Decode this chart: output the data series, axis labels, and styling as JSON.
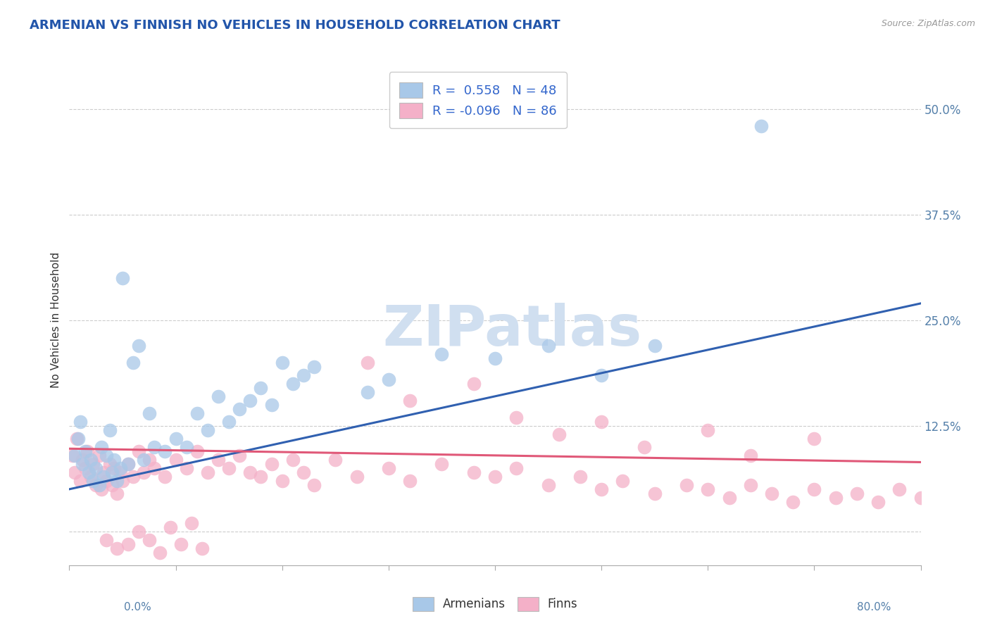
{
  "title": "ARMENIAN VS FINNISH NO VEHICLES IN HOUSEHOLD CORRELATION CHART",
  "source_text": "Source: ZipAtlas.com",
  "ylabel": "No Vehicles in Household",
  "xmin": 0.0,
  "xmax": 0.8,
  "ymin": -0.04,
  "ymax": 0.54,
  "yticks": [
    0.0,
    0.125,
    0.25,
    0.375,
    0.5
  ],
  "ytick_labels": [
    "",
    "12.5%",
    "25.0%",
    "37.5%",
    "50.0%"
  ],
  "armenian_R": 0.558,
  "armenian_N": 48,
  "finnish_R": -0.096,
  "finnish_N": 86,
  "armenian_color": "#A8C8E8",
  "finnish_color": "#F4B0C8",
  "armenian_line_color": "#3060B0",
  "finnish_line_color": "#E05878",
  "watermark_color": "#D0DFF0",
  "background_color": "#FFFFFF",
  "grid_color": "#CCCCCC",
  "arm_line_x0": 0.0,
  "arm_line_y0": 0.05,
  "arm_line_x1": 0.8,
  "arm_line_y1": 0.27,
  "fin_line_x0": 0.0,
  "fin_line_y0": 0.098,
  "fin_line_x1": 0.8,
  "fin_line_y1": 0.082,
  "armenian_scatter_x": [
    0.005,
    0.008,
    0.01,
    0.012,
    0.015,
    0.018,
    0.02,
    0.022,
    0.025,
    0.028,
    0.03,
    0.032,
    0.035,
    0.038,
    0.04,
    0.042,
    0.045,
    0.048,
    0.05,
    0.055,
    0.06,
    0.065,
    0.07,
    0.075,
    0.08,
    0.09,
    0.1,
    0.11,
    0.12,
    0.13,
    0.14,
    0.15,
    0.16,
    0.17,
    0.18,
    0.19,
    0.2,
    0.21,
    0.22,
    0.23,
    0.28,
    0.3,
    0.35,
    0.4,
    0.45,
    0.5,
    0.55,
    0.65
  ],
  "armenian_scatter_y": [
    0.09,
    0.11,
    0.13,
    0.08,
    0.095,
    0.07,
    0.085,
    0.06,
    0.075,
    0.055,
    0.1,
    0.065,
    0.09,
    0.12,
    0.07,
    0.085,
    0.06,
    0.075,
    0.3,
    0.08,
    0.2,
    0.22,
    0.085,
    0.14,
    0.1,
    0.095,
    0.11,
    0.1,
    0.14,
    0.12,
    0.16,
    0.13,
    0.145,
    0.155,
    0.17,
    0.15,
    0.2,
    0.175,
    0.185,
    0.195,
    0.165,
    0.18,
    0.21,
    0.205,
    0.22,
    0.185,
    0.22,
    0.48
  ],
  "finnish_scatter_x": [
    0.003,
    0.005,
    0.007,
    0.01,
    0.012,
    0.015,
    0.017,
    0.02,
    0.022,
    0.025,
    0.028,
    0.03,
    0.032,
    0.035,
    0.038,
    0.04,
    0.042,
    0.045,
    0.048,
    0.05,
    0.055,
    0.06,
    0.065,
    0.07,
    0.075,
    0.08,
    0.09,
    0.1,
    0.11,
    0.12,
    0.13,
    0.14,
    0.15,
    0.16,
    0.17,
    0.18,
    0.19,
    0.2,
    0.21,
    0.22,
    0.23,
    0.25,
    0.27,
    0.3,
    0.32,
    0.35,
    0.38,
    0.4,
    0.42,
    0.45,
    0.48,
    0.5,
    0.52,
    0.55,
    0.58,
    0.6,
    0.62,
    0.64,
    0.66,
    0.68,
    0.7,
    0.72,
    0.74,
    0.76,
    0.78,
    0.8,
    0.035,
    0.045,
    0.055,
    0.065,
    0.075,
    0.085,
    0.095,
    0.105,
    0.115,
    0.125,
    0.28,
    0.32,
    0.38,
    0.42,
    0.46,
    0.5,
    0.54,
    0.6,
    0.64,
    0.7
  ],
  "finnish_scatter_y": [
    0.09,
    0.07,
    0.11,
    0.06,
    0.085,
    0.075,
    0.095,
    0.065,
    0.08,
    0.055,
    0.09,
    0.05,
    0.07,
    0.06,
    0.08,
    0.055,
    0.075,
    0.045,
    0.07,
    0.06,
    0.08,
    0.065,
    0.095,
    0.07,
    0.085,
    0.075,
    0.065,
    0.085,
    0.075,
    0.095,
    0.07,
    0.085,
    0.075,
    0.09,
    0.07,
    0.065,
    0.08,
    0.06,
    0.085,
    0.07,
    0.055,
    0.085,
    0.065,
    0.075,
    0.06,
    0.08,
    0.07,
    0.065,
    0.075,
    0.055,
    0.065,
    0.05,
    0.06,
    0.045,
    0.055,
    0.05,
    0.04,
    0.055,
    0.045,
    0.035,
    0.05,
    0.04,
    0.045,
    0.035,
    0.05,
    0.04,
    -0.01,
    -0.02,
    -0.015,
    0.0,
    -0.01,
    -0.025,
    0.005,
    -0.015,
    0.01,
    -0.02,
    0.2,
    0.155,
    0.175,
    0.135,
    0.115,
    0.13,
    0.1,
    0.12,
    0.09,
    0.11
  ]
}
